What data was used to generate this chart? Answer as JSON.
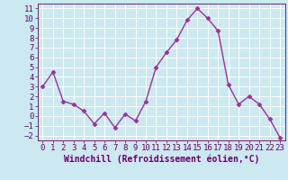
{
  "x": [
    0,
    1,
    2,
    3,
    4,
    5,
    6,
    7,
    8,
    9,
    10,
    11,
    12,
    13,
    14,
    15,
    16,
    17,
    18,
    19,
    20,
    21,
    22,
    23
  ],
  "y": [
    3,
    4.5,
    1.5,
    1.2,
    0.5,
    -0.8,
    0.3,
    -1.2,
    0.2,
    -0.5,
    1.5,
    5.0,
    6.5,
    7.8,
    9.8,
    11.0,
    10.0,
    8.7,
    3.2,
    1.2,
    2.0,
    1.2,
    -0.3,
    -2.2
  ],
  "line_color": "#993399",
  "marker": "D",
  "marker_size": 2.5,
  "linewidth": 1.0,
  "xlabel": "Windchill (Refroidissement éolien,°C)",
  "xlim": [
    -0.5,
    23.5
  ],
  "ylim": [
    -2.5,
    11.5
  ],
  "yticks": [
    -2,
    -1,
    0,
    1,
    2,
    3,
    4,
    5,
    6,
    7,
    8,
    9,
    10,
    11
  ],
  "xticks": [
    0,
    1,
    2,
    3,
    4,
    5,
    6,
    7,
    8,
    9,
    10,
    11,
    12,
    13,
    14,
    15,
    16,
    17,
    18,
    19,
    20,
    21,
    22,
    23
  ],
  "bg_color": "#cce8f0",
  "grid_color": "#ffffff",
  "tick_color": "#660066",
  "label_color": "#660066",
  "tick_fontsize": 6.5,
  "xlabel_fontsize": 7.0
}
